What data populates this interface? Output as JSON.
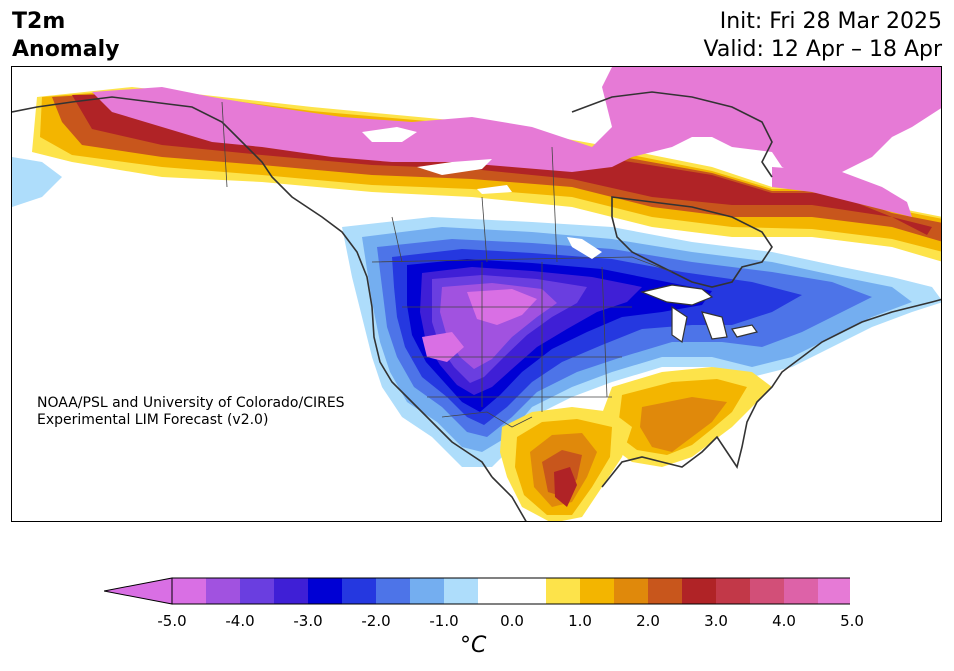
{
  "header": {
    "title_line1": "T2m",
    "title_line2": "Anomaly",
    "init_text": "Init: Fri 28 Mar 2025",
    "valid_text": "Valid: 12 Apr – 18 Apr"
  },
  "map": {
    "region": "North America",
    "variable": "2-m temperature anomaly",
    "credit_line1": "NOAA/PSL and University of Colorado/CIRES",
    "credit_line2": "Experimental LIM Forecast (v2.0)"
  },
  "colorbar": {
    "unit": "°C",
    "tick_labels": [
      "-5.0",
      "-4.0",
      "-3.0",
      "-2.0",
      "-1.0",
      "0.0",
      "1.0",
      "2.0",
      "3.0",
      "4.0",
      "5.0"
    ],
    "colors": [
      "#d96fe4",
      "#a152e0",
      "#6a3ee0",
      "#3f1fd6",
      "#0000d4",
      "#2538e0",
      "#4d74e8",
      "#74aef0",
      "#aeddfb",
      "#ffffff",
      "#ffffff",
      "#fde34a",
      "#f3b500",
      "#e0890b",
      "#c8561c",
      "#b02326",
      "#c23848",
      "#d24f78",
      "#dd62a8",
      "#e67ad6"
    ],
    "extend_low_color": "#d96fe4",
    "extend_high_color": "#e67ad6"
  }
}
